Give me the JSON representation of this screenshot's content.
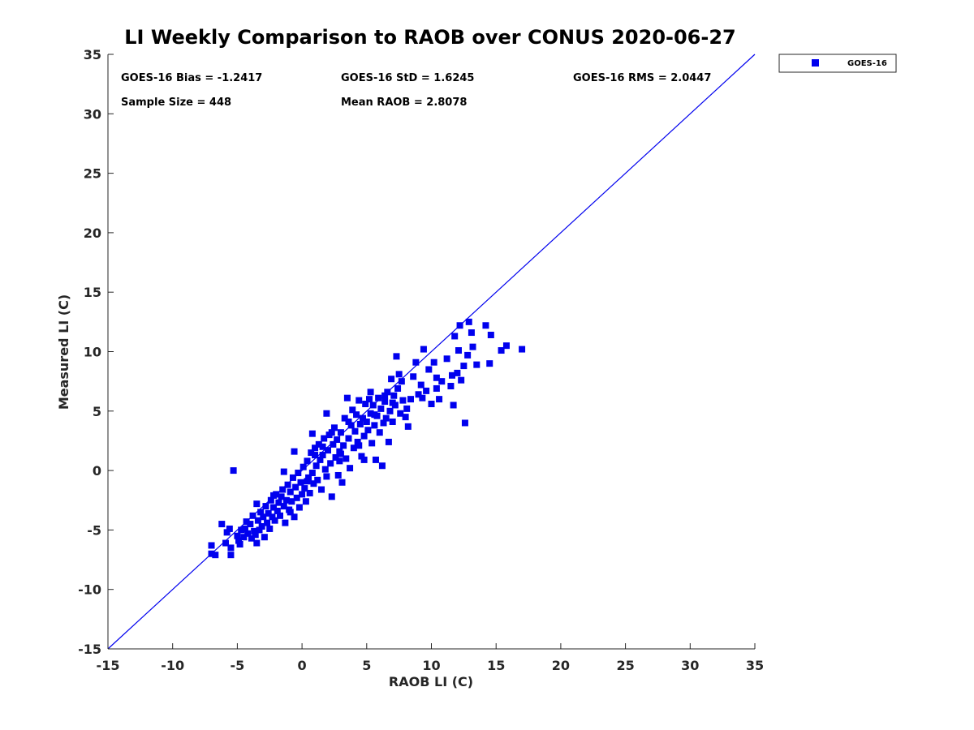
{
  "chart_data": {
    "type": "scatter",
    "title": "LI Weekly Comparison to RAOB over CONUS 2020-06-27",
    "xlabel": "RAOB LI (C)",
    "ylabel": "Measured LI (C)",
    "xlim": [
      -15,
      35
    ],
    "ylim": [
      -15,
      35
    ],
    "xticks": [
      -15,
      -10,
      -5,
      0,
      5,
      10,
      15,
      20,
      25,
      30,
      35
    ],
    "yticks": [
      -15,
      -10,
      -5,
      0,
      5,
      10,
      15,
      20,
      25,
      30,
      35
    ],
    "xtick_labels": [
      "-15",
      "-10",
      "-5",
      "0",
      "5",
      "10",
      "15",
      "20",
      "25",
      "30",
      "35"
    ],
    "ytick_labels": [
      "-15",
      "-10",
      "-5",
      "0",
      "5",
      "10",
      "15",
      "20",
      "25",
      "30",
      "35"
    ],
    "grid": false,
    "legend_position": "top-right",
    "reference_line": {
      "x": [
        -15,
        35
      ],
      "y": [
        -15,
        35
      ]
    },
    "annotations": [
      "GOES-16 Bias = -1.2417",
      "GOES-16 StD = 1.6245",
      "GOES-16 RMS = 2.0447",
      "Sample Size = 448",
      "Mean RAOB = 2.8078"
    ],
    "series": [
      {
        "name": "GOES-16",
        "color": "#0000ee",
        "marker": "square",
        "points": [
          [
            -7.0,
            -7.0
          ],
          [
            -6.7,
            -7.1
          ],
          [
            -7.0,
            -6.3
          ],
          [
            -6.2,
            -4.5
          ],
          [
            -5.8,
            -5.2
          ],
          [
            -5.9,
            -6.1
          ],
          [
            -5.5,
            -7.1
          ],
          [
            -5.5,
            -6.5
          ],
          [
            -5.3,
            0.0
          ],
          [
            -5.6,
            -4.9
          ],
          [
            -5.0,
            -5.5
          ],
          [
            -4.8,
            -6.2
          ],
          [
            -4.7,
            -5.0
          ],
          [
            -4.5,
            -5.6
          ],
          [
            -4.4,
            -4.9
          ],
          [
            -4.2,
            -5.3
          ],
          [
            -4.0,
            -4.5
          ],
          [
            -3.9,
            -5.7
          ],
          [
            -3.8,
            -3.8
          ],
          [
            -3.6,
            -5.4
          ],
          [
            -3.5,
            -6.1
          ],
          [
            -3.4,
            -4.2
          ],
          [
            -3.3,
            -5.0
          ],
          [
            -3.2,
            -3.5
          ],
          [
            -3.5,
            -2.8
          ],
          [
            -3.1,
            -4.7
          ],
          [
            -3.0,
            -3.9
          ],
          [
            -2.9,
            -5.6
          ],
          [
            -2.8,
            -3.0
          ],
          [
            -2.7,
            -4.4
          ],
          [
            -2.6,
            -3.6
          ],
          [
            -2.5,
            -4.9
          ],
          [
            -2.4,
            -2.5
          ],
          [
            -2.3,
            -3.9
          ],
          [
            -2.2,
            -3.1
          ],
          [
            -2.1,
            -4.2
          ],
          [
            -2.0,
            -2.0
          ],
          [
            -1.9,
            -3.4
          ],
          [
            -1.8,
            -2.7
          ],
          [
            -1.7,
            -3.8
          ],
          [
            -1.6,
            -2.2
          ],
          [
            -1.5,
            -1.6
          ],
          [
            -1.4,
            -3.0
          ],
          [
            -1.3,
            -4.4
          ],
          [
            -1.2,
            -2.5
          ],
          [
            -1.1,
            -1.2
          ],
          [
            -1.0,
            -3.3
          ],
          [
            -0.9,
            -1.8
          ],
          [
            -0.8,
            -2.6
          ],
          [
            -0.7,
            -0.6
          ],
          [
            -0.6,
            -3.9
          ],
          [
            -0.5,
            -1.4
          ],
          [
            -0.4,
            -2.3
          ],
          [
            -0.3,
            -0.2
          ],
          [
            -0.2,
            -3.1
          ],
          [
            -0.1,
            -1.0
          ],
          [
            0.0,
            -2.0
          ],
          [
            0.1,
            0.3
          ],
          [
            0.2,
            -1.5
          ],
          [
            0.3,
            -2.6
          ],
          [
            0.4,
            0.8
          ],
          [
            0.5,
            -0.6
          ],
          [
            0.6,
            -1.9
          ],
          [
            0.7,
            1.5
          ],
          [
            0.8,
            -0.2
          ],
          [
            0.9,
            -1.1
          ],
          [
            1.0,
            1.9
          ],
          [
            1.1,
            0.4
          ],
          [
            1.2,
            -0.8
          ],
          [
            1.3,
            2.2
          ],
          [
            1.4,
            0.9
          ],
          [
            1.5,
            -1.6
          ],
          [
            1.6,
            1.3
          ],
          [
            1.7,
            2.7
          ],
          [
            1.8,
            0.1
          ],
          [
            1.9,
            4.8
          ],
          [
            2.0,
            1.7
          ],
          [
            2.1,
            3.0
          ],
          [
            2.2,
            0.6
          ],
          [
            2.3,
            -2.2
          ],
          [
            2.4,
            2.2
          ],
          [
            2.5,
            3.6
          ],
          [
            2.6,
            1.1
          ],
          [
            2.7,
            2.6
          ],
          [
            2.8,
            -0.4
          ],
          [
            2.9,
            1.6
          ],
          [
            3.0,
            3.2
          ],
          [
            3.1,
            -1.0
          ],
          [
            3.2,
            2.1
          ],
          [
            3.3,
            4.4
          ],
          [
            3.4,
            1.0
          ],
          [
            3.5,
            6.1
          ],
          [
            3.6,
            2.7
          ],
          [
            3.7,
            0.2
          ],
          [
            3.8,
            3.8
          ],
          [
            3.9,
            5.1
          ],
          [
            4.0,
            1.9
          ],
          [
            4.1,
            3.3
          ],
          [
            4.2,
            4.7
          ],
          [
            4.3,
            2.4
          ],
          [
            4.4,
            5.9
          ],
          [
            4.5,
            3.9
          ],
          [
            4.6,
            1.2
          ],
          [
            4.7,
            4.4
          ],
          [
            4.8,
            2.9
          ],
          [
            4.9,
            5.6
          ],
          [
            5.0,
            4.1
          ],
          [
            5.1,
            3.4
          ],
          [
            5.2,
            6.0
          ],
          [
            5.3,
            4.8
          ],
          [
            5.4,
            2.3
          ],
          [
            5.5,
            5.5
          ],
          [
            5.6,
            3.8
          ],
          [
            5.7,
            0.9
          ],
          [
            5.8,
            4.6
          ],
          [
            5.9,
            6.1
          ],
          [
            6.0,
            3.2
          ],
          [
            6.1,
            5.2
          ],
          [
            6.2,
            0.4
          ],
          [
            6.3,
            4.0
          ],
          [
            6.4,
            5.8
          ],
          [
            6.5,
            4.4
          ],
          [
            6.6,
            6.6
          ],
          [
            6.7,
            2.4
          ],
          [
            6.8,
            5.0
          ],
          [
            6.9,
            7.7
          ],
          [
            7.0,
            4.1
          ],
          [
            7.1,
            6.3
          ],
          [
            7.2,
            5.5
          ],
          [
            7.3,
            9.6
          ],
          [
            7.4,
            6.9
          ],
          [
            7.5,
            8.1
          ],
          [
            7.6,
            4.8
          ],
          [
            7.7,
            7.5
          ],
          [
            7.8,
            5.9
          ],
          [
            8.0,
            4.5
          ],
          [
            8.2,
            3.7
          ],
          [
            8.4,
            6.0
          ],
          [
            8.6,
            7.9
          ],
          [
            8.8,
            9.1
          ],
          [
            9.0,
            6.4
          ],
          [
            9.2,
            7.2
          ],
          [
            9.4,
            10.2
          ],
          [
            9.6,
            6.7
          ],
          [
            9.8,
            8.5
          ],
          [
            10.0,
            5.6
          ],
          [
            10.2,
            9.1
          ],
          [
            10.4,
            7.8
          ],
          [
            10.6,
            6.0
          ],
          [
            10.8,
            7.5
          ],
          [
            11.2,
            9.4
          ],
          [
            11.5,
            7.1
          ],
          [
            11.7,
            5.5
          ],
          [
            11.8,
            11.3
          ],
          [
            12.0,
            8.2
          ],
          [
            12.1,
            10.1
          ],
          [
            12.3,
            7.6
          ],
          [
            12.5,
            8.8
          ],
          [
            12.6,
            4.0
          ],
          [
            12.8,
            9.7
          ],
          [
            12.9,
            12.5
          ],
          [
            13.2,
            10.4
          ],
          [
            13.5,
            8.9
          ],
          [
            14.2,
            12.2
          ],
          [
            14.5,
            9.0
          ],
          [
            14.6,
            11.4
          ],
          [
            15.4,
            10.1
          ],
          [
            15.8,
            10.5
          ],
          [
            17.0,
            10.2
          ],
          [
            -4.9,
            -5.9
          ],
          [
            -4.3,
            -4.3
          ],
          [
            -3.7,
            -5.1
          ],
          [
            -2.2,
            -2.1
          ],
          [
            -1.4,
            -0.1
          ],
          [
            -0.9,
            -3.5
          ],
          [
            0.4,
            -0.9
          ],
          [
            1.0,
            1.3
          ],
          [
            1.6,
            2.0
          ],
          [
            2.3,
            3.2
          ],
          [
            2.9,
            0.8
          ],
          [
            3.6,
            4.1
          ],
          [
            4.4,
            2.1
          ],
          [
            5.6,
            4.7
          ],
          [
            6.4,
            6.3
          ],
          [
            7.0,
            5.7
          ],
          [
            8.1,
            5.2
          ],
          [
            9.3,
            6.1
          ],
          [
            10.4,
            6.9
          ],
          [
            11.6,
            8.0
          ],
          [
            12.2,
            12.2
          ],
          [
            13.1,
            11.6
          ],
          [
            -0.6,
            1.6
          ],
          [
            0.8,
            3.1
          ],
          [
            1.9,
            -0.5
          ],
          [
            3.0,
            1.4
          ],
          [
            4.8,
            0.9
          ],
          [
            5.3,
            6.6
          ]
        ]
      }
    ]
  }
}
